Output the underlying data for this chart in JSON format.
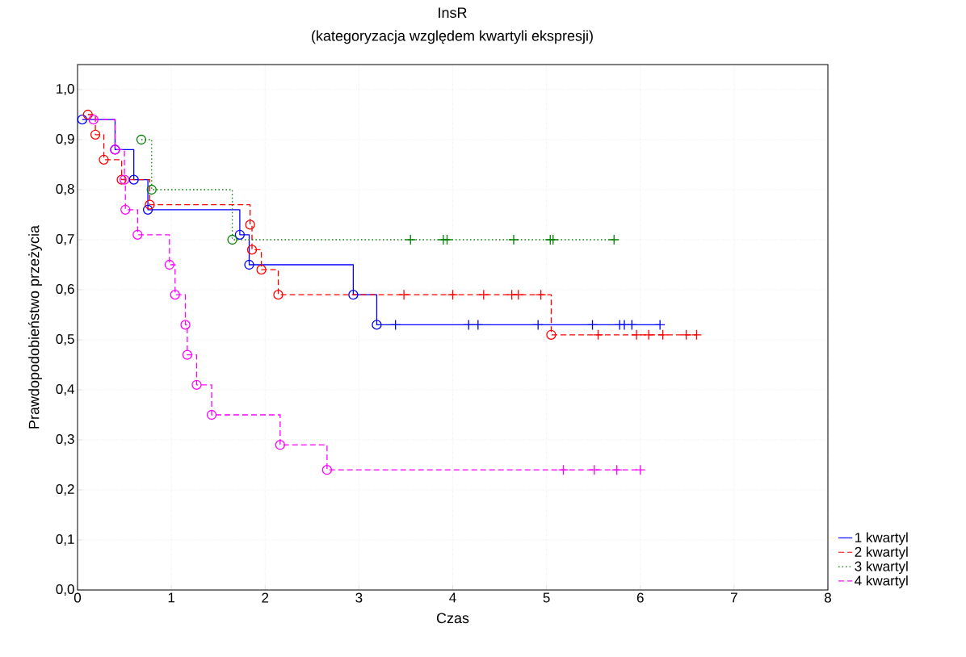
{
  "chart_data": {
    "type": "step",
    "title": "InsR",
    "subtitle": "(kategoryzacja względem kwartyli ekspresji)",
    "xlabel": "Czas",
    "ylabel": "Prawdopodobieństwo przeżycia",
    "xlim": [
      0,
      8
    ],
    "ylim": [
      0,
      1.05
    ],
    "xticks": [
      0,
      1,
      2,
      3,
      4,
      5,
      6,
      7,
      8
    ],
    "yticks": [
      {
        "value": 0,
        "label": "0,0"
      },
      {
        "value": 0.1,
        "label": "0,1"
      },
      {
        "value": 0.2,
        "label": "0,2"
      },
      {
        "value": 0.3,
        "label": "0,3"
      },
      {
        "value": 0.4,
        "label": "0,4"
      },
      {
        "value": 0.5,
        "label": "0,5"
      },
      {
        "value": 0.6,
        "label": "0,6"
      },
      {
        "value": 0.7,
        "label": "0,7"
      },
      {
        "value": 0.8,
        "label": "0,8"
      },
      {
        "value": 0.9,
        "label": "0,9"
      },
      {
        "value": 1.0,
        "label": "1,0"
      }
    ],
    "grid": true,
    "legend": "bottom right",
    "series": [
      {
        "name": "1 kwartyl",
        "color": "#0000ff",
        "line_style": "solid",
        "marker": "none",
        "x": [
          0.05,
          0.4,
          0.6,
          0.75,
          1.73,
          1.83,
          2.94,
          3.19,
          6.21
        ],
        "values": [
          0.94,
          0.88,
          0.82,
          0.76,
          0.71,
          0.65,
          0.59,
          0.53,
          0.53
        ]
      },
      {
        "name": "2 kwartyl",
        "color": "#ff0000",
        "line_style": "dashed",
        "marker": "none",
        "x": [
          0.11,
          0.19,
          0.28,
          0.47,
          0.77,
          1.84,
          1.86,
          1.96,
          2.14,
          5.05,
          6.6
        ],
        "values": [
          0.95,
          0.91,
          0.86,
          0.82,
          0.77,
          0.73,
          0.68,
          0.64,
          0.59,
          0.51,
          0.51
        ]
      },
      {
        "name": "3 kwartyl",
        "color": "#008000",
        "line_style": "dotted",
        "marker": "none",
        "x": [
          0.68,
          0.79,
          1.65,
          5.72
        ],
        "values": [
          0.9,
          0.8,
          0.7,
          0.7
        ]
      },
      {
        "name": "4 kwartyl",
        "color": "#ff00ff",
        "line_style": "dashed",
        "marker": "none",
        "x": [
          0.17,
          0.4,
          0.5,
          0.51,
          0.64,
          0.98,
          1.04,
          1.15,
          1.17,
          1.27,
          1.43,
          2.16,
          2.66,
          6.0
        ],
        "values": [
          0.94,
          0.88,
          0.82,
          0.76,
          0.71,
          0.65,
          0.59,
          0.53,
          0.47,
          0.41,
          0.35,
          0.29,
          0.24,
          0.24
        ]
      },
      {
        "color": "#0000ff",
        "type": "scatter",
        "marker": "circle",
        "x": [
          0.05,
          0.4,
          0.6,
          0.75,
          1.73,
          1.83,
          2.94,
          3.19
        ],
        "values": [
          0.94,
          0.88,
          0.82,
          0.76,
          0.71,
          0.65,
          0.59,
          0.53
        ]
      },
      {
        "color": "#ff0000",
        "type": "scatter",
        "marker": "circle",
        "x": [
          0.11,
          0.19,
          0.28,
          0.47,
          0.77,
          1.84,
          1.86,
          1.96,
          2.14,
          5.05
        ],
        "values": [
          0.95,
          0.91,
          0.86,
          0.82,
          0.77,
          0.73,
          0.68,
          0.64,
          0.59,
          0.51
        ]
      },
      {
        "color": "#008000",
        "type": "scatter",
        "marker": "circle",
        "x": [
          0.68,
          0.79,
          1.65
        ],
        "values": [
          0.9,
          0.8,
          0.7
        ]
      },
      {
        "color": "#ff00ff",
        "type": "scatter",
        "marker": "circle",
        "x": [
          0.17,
          0.4,
          0.5,
          0.51,
          0.64,
          0.98,
          1.04,
          1.15,
          1.17,
          1.27,
          1.43,
          2.16,
          2.66
        ],
        "values": [
          0.94,
          0.88,
          0.82,
          0.76,
          0.71,
          0.65,
          0.59,
          0.53,
          0.47,
          0.41,
          0.35,
          0.29,
          0.24
        ]
      },
      {
        "color": "#0000ff",
        "type": "scatter",
        "marker": "cross",
        "x": [
          3.39,
          4.17,
          4.27,
          4.91,
          5.49,
          5.78,
          5.83,
          5.91,
          6.21
        ],
        "values": [
          0.53,
          0.53,
          0.53,
          0.53,
          0.53,
          0.53,
          0.53,
          0.53,
          0.53
        ]
      },
      {
        "color": "#ff0000",
        "type": "scatter",
        "marker": "cross",
        "x": [
          3.48,
          4.0,
          4.33,
          4.63,
          4.7,
          4.94,
          5.55,
          5.96,
          6.09,
          6.24,
          6.49,
          6.6
        ],
        "values": [
          0.59,
          0.59,
          0.59,
          0.59,
          0.59,
          0.59,
          0.51,
          0.51,
          0.51,
          0.51,
          0.51,
          0.51
        ]
      },
      {
        "color": "#008000",
        "type": "scatter",
        "marker": "cross",
        "x": [
          3.55,
          3.9,
          3.94,
          4.65,
          5.04,
          5.07,
          5.72
        ],
        "values": [
          0.7,
          0.7,
          0.7,
          0.7,
          0.7,
          0.7,
          0.7
        ]
      },
      {
        "color": "#ff00ff",
        "type": "scatter",
        "marker": "cross",
        "x": [
          5.18,
          5.51,
          5.75,
          6.0
        ],
        "values": [
          0.24,
          0.24,
          0.24,
          0.24
        ]
      }
    ]
  }
}
